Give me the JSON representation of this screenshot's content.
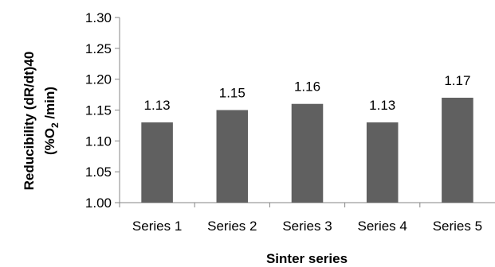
{
  "chart_data": {
    "type": "bar",
    "categories": [
      "Series 1",
      "Series 2",
      "Series 3",
      "Series 4",
      "Series 5"
    ],
    "values": [
      1.13,
      1.15,
      1.16,
      1.13,
      1.17
    ],
    "data_labels": [
      "1.13",
      "1.15",
      "1.16",
      "1.13",
      "1.17"
    ],
    "xlabel": "Sinter series",
    "ylabel_line1": "Reducibility (dR/dt)40",
    "ylabel_line2": "(%O",
    "ylabel_line2_sub": "2",
    "ylabel_line2_end": " /min)",
    "ylim": [
      1.0,
      1.3
    ],
    "yticks": [
      "1.00",
      "1.05",
      "1.10",
      "1.15",
      "1.20",
      "1.25",
      "1.30"
    ],
    "grid": false,
    "legend": "none",
    "bar_color": "#606060",
    "axis_color": "#868686"
  }
}
